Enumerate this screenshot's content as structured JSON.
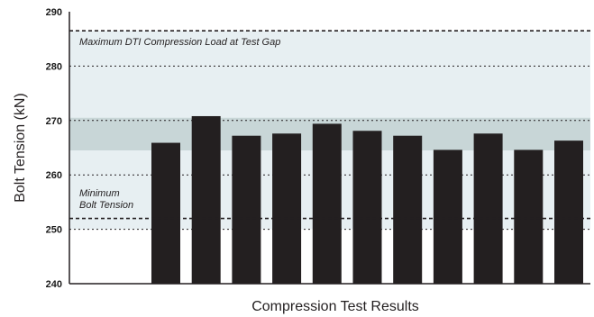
{
  "chart_data": {
    "type": "bar",
    "xlabel": "Compression Test Results",
    "ylabel": "Bolt Tension (kN)",
    "ylim": [
      240,
      290
    ],
    "yticks": [
      "240",
      "250",
      "260",
      "270",
      "280",
      "290"
    ],
    "values": [
      265.9,
      270.8,
      267.2,
      267.6,
      269.4,
      268.1,
      267.2,
      264.6,
      267.6,
      264.6,
      266.3
    ],
    "bands": [
      {
        "from": 250,
        "to": 286.5,
        "color": "#e7eff2"
      },
      {
        "from": 264.5,
        "to": 270.5,
        "color": "#c8d6d7"
      }
    ],
    "reference_lines": [
      {
        "y": 286.5,
        "style": "dashed",
        "label": "Maximum DTI Compression Load at Test Gap"
      },
      {
        "y": 252,
        "style": "dashed",
        "label": "Minimum\nBolt Tension"
      }
    ],
    "grid": {
      "y": true,
      "style": "dotted"
    },
    "colors": {
      "bar": "#231f20",
      "axis": "#231f20",
      "grid": "#231f20"
    }
  }
}
